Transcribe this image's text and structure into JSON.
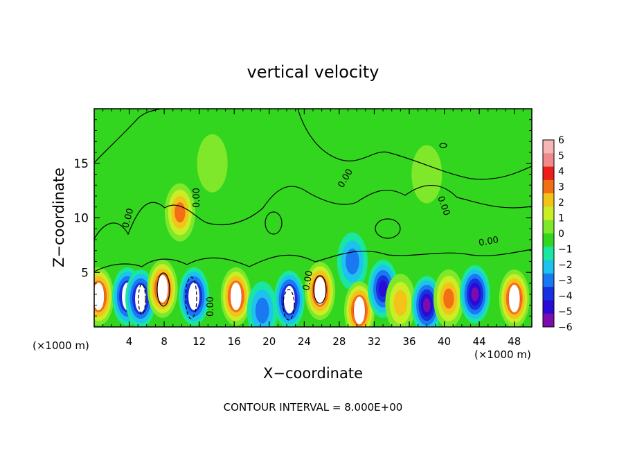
{
  "chart_data": {
    "type": "heatmap",
    "title": "vertical velocity",
    "xlabel": "X−coordinate",
    "ylabel": "Z−coordinate",
    "x_units": "(×1000 m)",
    "y_units": "(×1000 m)",
    "xlim": [
      0,
      50
    ],
    "ylim": [
      0,
      20
    ],
    "x_ticks": [
      "4",
      "8",
      "12",
      "16",
      "20",
      "24",
      "28",
      "32",
      "36",
      "40",
      "44",
      "48"
    ],
    "y_ticks": [
      "5",
      "10",
      "15"
    ],
    "colorbar": {
      "min": -6,
      "max": 6,
      "labels": [
        "6",
        "5",
        "4",
        "3",
        "2",
        "1",
        "0",
        "−1",
        "−2",
        "−3",
        "−4",
        "−5",
        "−6"
      ]
    },
    "contour_labels": [
      "0.00",
      "0.00",
      "0.00",
      "0.00",
      "0.00",
      "0.00",
      "0.00"
    ],
    "footer": "CONTOUR INTERVAL = 8.000E+00",
    "features": [
      {
        "sign": "+",
        "x": 0.5,
        "z": 2.8,
        "amp": 6
      },
      {
        "sign": "-",
        "x": 3.8,
        "z": 2.8,
        "amp": 6
      },
      {
        "sign": "-",
        "x": 5.3,
        "z": 2.6,
        "amp": 6
      },
      {
        "sign": "+",
        "x": 7.8,
        "z": 3.5,
        "amp": 6
      },
      {
        "sign": "+",
        "x": 9.8,
        "z": 10.5,
        "amp": 4
      },
      {
        "sign": "-",
        "x": 11.4,
        "z": 2.8,
        "amp": 6
      },
      {
        "sign": "+",
        "x": 16.2,
        "z": 2.8,
        "amp": 6
      },
      {
        "sign": "-",
        "x": 19.2,
        "z": 1.5,
        "amp": 2.5
      },
      {
        "sign": "-",
        "x": 22.3,
        "z": 2.5,
        "amp": 6
      },
      {
        "sign": "+",
        "x": 25.8,
        "z": 3.3,
        "amp": 6
      },
      {
        "sign": "-",
        "x": 29.5,
        "z": 6.0,
        "amp": 3
      },
      {
        "sign": "+",
        "x": 30.3,
        "z": 1.5,
        "amp": 6
      },
      {
        "sign": "-",
        "x": 33.0,
        "z": 3.5,
        "amp": 4.5
      },
      {
        "sign": "+",
        "x": 35.0,
        "z": 2.2,
        "amp": 2.5
      },
      {
        "sign": "-",
        "x": 38.0,
        "z": 2.0,
        "amp": 5.5
      },
      {
        "sign": "+",
        "x": 40.5,
        "z": 2.6,
        "amp": 3.5
      },
      {
        "sign": "-",
        "x": 43.5,
        "z": 3.0,
        "amp": 5.5
      },
      {
        "sign": "+",
        "x": 48.0,
        "z": 2.6,
        "amp": 6
      },
      {
        "sign": "+",
        "x": 13.5,
        "z": 15.0,
        "amp": 1.2
      },
      {
        "sign": "+",
        "x": 38.0,
        "z": 14.0,
        "amp": 0.6
      }
    ]
  }
}
